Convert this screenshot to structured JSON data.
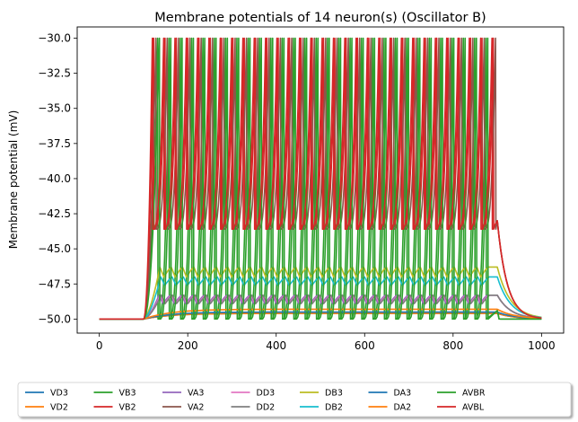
{
  "chart_data": {
    "type": "line",
    "title": "Membrane potentials of 14 neuron(s) (Oscillator B)",
    "xlabel": "",
    "ylabel": "Membrane potential (mV)",
    "xlim": [
      -50,
      1050
    ],
    "ylim": [
      -51,
      -29.2
    ],
    "x_ticks": [
      0,
      200,
      400,
      600,
      800,
      1000
    ],
    "y_ticks": [
      -30.0,
      -32.5,
      -35.0,
      -37.5,
      -40.0,
      -42.5,
      -45.0,
      -47.5,
      -50.0
    ],
    "grid": false,
    "legend_position": "bottom-outside",
    "rest_potential": -50.0,
    "stimulus_on": 100,
    "stimulus_off": 900,
    "run_end": 1000,
    "series": [
      {
        "name": "VD3",
        "color": "#1f77b4",
        "pattern": "decay",
        "level": -49.6
      },
      {
        "name": "VD2",
        "color": "#ff7f0e",
        "pattern": "decay",
        "level": -49.6
      },
      {
        "name": "VB3",
        "color": "#2ca02c",
        "pattern": "spike",
        "low": -50.0,
        "peak": -30.0,
        "period": 25.6,
        "offset": 132
      },
      {
        "name": "VB2",
        "color": "#d62728",
        "pattern": "spike",
        "low": -43.6,
        "peak": -30.0,
        "period": 25.6,
        "offset": 123
      },
      {
        "name": "VA3",
        "color": "#9467bd",
        "pattern": "ripple",
        "low": -48.9,
        "peak": -48.3,
        "period": 25.6,
        "offset": 135
      },
      {
        "name": "VA2",
        "color": "#8c564b",
        "pattern": "spike",
        "low": -43.6,
        "peak": -30.0,
        "period": 25.6,
        "offset": 128
      },
      {
        "name": "DD3",
        "color": "#e377c2",
        "pattern": "ripple",
        "low": -48.9,
        "peak": -48.3,
        "period": 25.6,
        "offset": 138
      },
      {
        "name": "DD2",
        "color": "#7f7f7f",
        "pattern": "ripple",
        "low": -48.9,
        "peak": -48.3,
        "period": 25.6,
        "offset": 140
      },
      {
        "name": "DB3",
        "color": "#bcbd22",
        "pattern": "ripple",
        "low": -47.0,
        "peak": -46.3,
        "period": 25.6,
        "offset": 137
      },
      {
        "name": "DB2",
        "color": "#17becf",
        "pattern": "ripple",
        "low": -47.6,
        "peak": -47.0,
        "period": 25.6,
        "offset": 139
      },
      {
        "name": "DA3",
        "color": "#1f77b4",
        "pattern": "flat",
        "level": -49.5
      },
      {
        "name": "DA2",
        "color": "#ff7f0e",
        "pattern": "flat",
        "level": -49.3
      },
      {
        "name": "AVBR",
        "color": "#2ca02c",
        "pattern": "spike",
        "low": -50.0,
        "peak": -30.0,
        "period": 25.6,
        "offset": 136
      },
      {
        "name": "AVBL",
        "color": "#d62728",
        "pattern": "spike",
        "low": -43.6,
        "peak": -30.0,
        "period": 25.6,
        "offset": 120
      }
    ]
  }
}
